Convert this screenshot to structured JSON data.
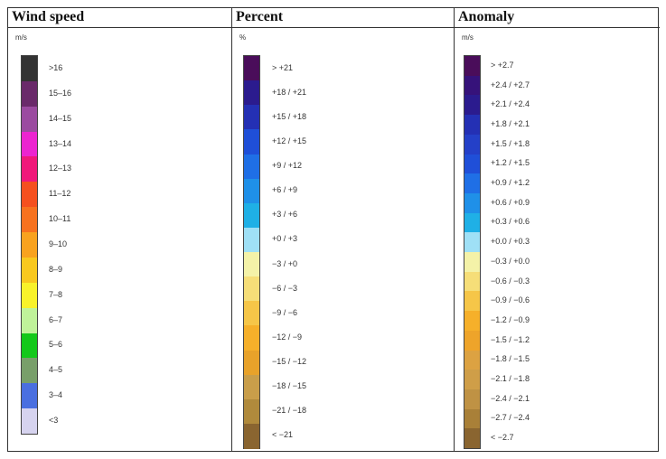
{
  "columns": [
    {
      "title": "Wind speed",
      "unit": "m/s",
      "items": [
        {
          "label": ">16",
          "color": "#333333"
        },
        {
          "label": "15–16",
          "color": "#6a2a6a"
        },
        {
          "label": "14–15",
          "color": "#9b4ba0"
        },
        {
          "label": "13–14",
          "color": "#ec24d0"
        },
        {
          "label": "12–13",
          "color": "#f0187a"
        },
        {
          "label": "11–12",
          "color": "#f5501f"
        },
        {
          "label": "10–11",
          "color": "#f7721f"
        },
        {
          "label": "9–10",
          "color": "#f8a21f"
        },
        {
          "label": "8–9",
          "color": "#f8c81f"
        },
        {
          "label": "7–8",
          "color": "#f8f22a"
        },
        {
          "label": "6–7",
          "color": "#bff29a"
        },
        {
          "label": "5–6",
          "color": "#13c81a"
        },
        {
          "label": "4–5",
          "color": "#789f6a"
        },
        {
          "label": "3–4",
          "color": "#4a6fe0"
        },
        {
          "label": "<3",
          "color": "#d6d3ef"
        }
      ]
    },
    {
      "title": "Percent",
      "unit": "%",
      "items": [
        {
          "label": "> +21",
          "color": "#4a0d5a"
        },
        {
          "label": "+18 / +21",
          "color": "#2b1b8e"
        },
        {
          "label": "+15 / +18",
          "color": "#2430b4"
        },
        {
          "label": "+12 / +15",
          "color": "#1f4fd8"
        },
        {
          "label": "+9 / +12",
          "color": "#1f6fe6"
        },
        {
          "label": "+6 / +9",
          "color": "#1f90e8"
        },
        {
          "label": "+3 / +6",
          "color": "#1fb0e6"
        },
        {
          "label": "+0 / +3",
          "color": "#9fe0f6"
        },
        {
          "label": "−3 / +0",
          "color": "#f4f2a8"
        },
        {
          "label": "−6 / −3",
          "color": "#f6de78"
        },
        {
          "label": "−9 / −6",
          "color": "#f6c648"
        },
        {
          "label": "−12 / −9",
          "color": "#f6b02a"
        },
        {
          "label": "−15 / −12",
          "color": "#e8a22a"
        },
        {
          "label": "−18 / −15",
          "color": "#c99e4a"
        },
        {
          "label": "−21 / −18",
          "color": "#b08a3c"
        },
        {
          "label": "< −21",
          "color": "#8a6530"
        }
      ]
    },
    {
      "title": "Anomaly",
      "unit": "m/s",
      "items": [
        {
          "label": "> +2.7",
          "color": "#4a0d5a"
        },
        {
          "label": "+2.4 / +2.7",
          "color": "#36127a"
        },
        {
          "label": "+2.1 / +2.4",
          "color": "#2b1b8e"
        },
        {
          "label": "+1.8 / +2.1",
          "color": "#2430b4"
        },
        {
          "label": "+1.5 / +1.8",
          "color": "#2440c8"
        },
        {
          "label": "+1.2 / +1.5",
          "color": "#1f4fd8"
        },
        {
          "label": "+0.9 / +1.2",
          "color": "#1f6fe6"
        },
        {
          "label": "+0.6 / +0.9",
          "color": "#1f90e8"
        },
        {
          "label": "+0.3 / +0.6",
          "color": "#1fb0e6"
        },
        {
          "label": "+0.0 / +0.3",
          "color": "#9fe0f6"
        },
        {
          "label": "−0.3 / +0.0",
          "color": "#f4f2a8"
        },
        {
          "label": "−0.6 / −0.3",
          "color": "#f6de78"
        },
        {
          "label": "−0.9 / −0.6",
          "color": "#f6c648"
        },
        {
          "label": "−1.2 / −0.9",
          "color": "#f6b02a"
        },
        {
          "label": "−1.5 / −1.2",
          "color": "#eea42a"
        },
        {
          "label": "−1.8 / −1.5",
          "color": "#dca242"
        },
        {
          "label": "−2.1 / −1.8",
          "color": "#cf9e48"
        },
        {
          "label": "−2.4 / −2.1",
          "color": "#bf9244"
        },
        {
          "label": "−2.7 / −2.4",
          "color": "#a98038"
        },
        {
          "label": "< −2.7",
          "color": "#8a6530"
        }
      ]
    }
  ]
}
